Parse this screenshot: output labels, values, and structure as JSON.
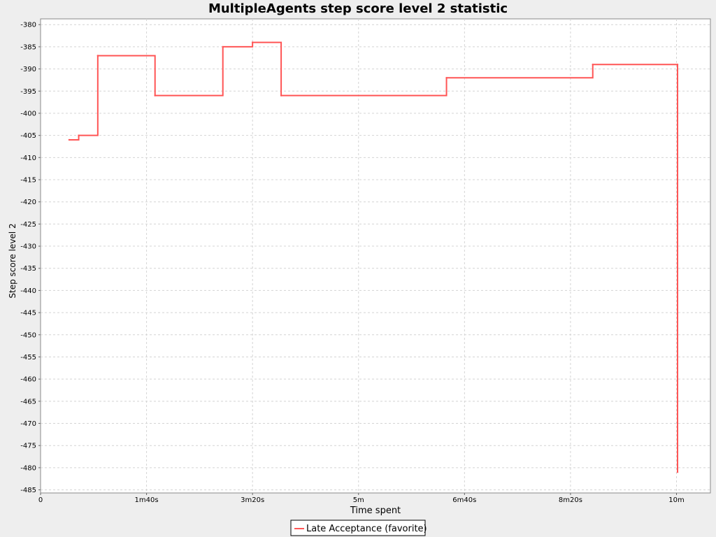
{
  "chart_data": {
    "type": "line",
    "title": "MultipleAgents step score level 2 statistic",
    "xlabel": "Time spent",
    "ylabel": "Step score level 2",
    "x_unit": "seconds",
    "xlim": [
      0,
      632
    ],
    "ylim": [
      -485.7,
      -378.7
    ],
    "x_ticks": [
      {
        "value": 0,
        "label": "0"
      },
      {
        "value": 100,
        "label": "1m40s"
      },
      {
        "value": 200,
        "label": "3m20s"
      },
      {
        "value": 300,
        "label": "5m"
      },
      {
        "value": 400,
        "label": "6m40s"
      },
      {
        "value": 500,
        "label": "8m20s"
      },
      {
        "value": 600,
        "label": "10m"
      }
    ],
    "y_ticks": [
      -380,
      -385,
      -390,
      -395,
      -400,
      -405,
      -410,
      -415,
      -420,
      -425,
      -430,
      -435,
      -440,
      -445,
      -450,
      -455,
      -460,
      -465,
      -470,
      -475,
      -480,
      -485
    ],
    "grid": true,
    "legend_position": "bottom",
    "series": [
      {
        "name": "Late Acceptance (favorite)",
        "color": "#ff5555",
        "step": true,
        "points": [
          [
            27,
            -406
          ],
          [
            36,
            -405
          ],
          [
            54,
            -387
          ],
          [
            108,
            -396
          ],
          [
            172,
            -385
          ],
          [
            200,
            -384
          ],
          [
            227,
            -396
          ],
          [
            383,
            -392
          ],
          [
            521,
            -389
          ],
          [
            601,
            -389
          ],
          [
            601,
            -481
          ]
        ]
      }
    ]
  }
}
